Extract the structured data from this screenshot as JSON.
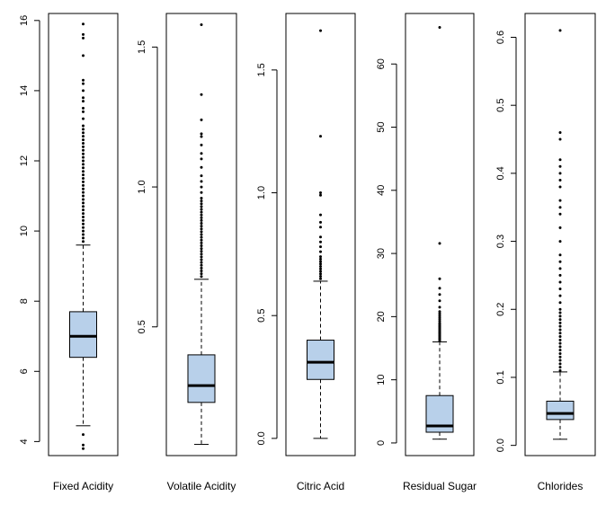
{
  "chart_data": [
    {
      "type": "box",
      "xlabel": "Fixed Acidity",
      "ylim": [
        3.6,
        16.2
      ],
      "yticks": [
        4,
        6,
        8,
        10,
        12,
        14,
        16
      ],
      "box": {
        "whisker_low": 4.45,
        "q1": 6.4,
        "median": 7.0,
        "q3": 7.7,
        "whisker_high": 9.6
      },
      "outliers": [
        3.8,
        3.9,
        4.2,
        9.7,
        9.8,
        9.9,
        10.0,
        10.1,
        10.2,
        10.3,
        10.4,
        10.5,
        10.6,
        10.7,
        10.8,
        10.9,
        11.0,
        11.1,
        11.2,
        11.3,
        11.4,
        11.5,
        11.6,
        11.7,
        11.8,
        11.9,
        12.0,
        12.1,
        12.2,
        12.3,
        12.4,
        12.5,
        12.6,
        12.7,
        12.8,
        12.9,
        13.0,
        13.2,
        13.4,
        13.5,
        13.7,
        13.8,
        14.0,
        14.2,
        14.3,
        15.0,
        15.5,
        15.6,
        15.9
      ]
    },
    {
      "type": "box",
      "xlabel": "Volatile Acidity",
      "ylim": [
        0.04,
        1.62
      ],
      "yticks": [
        0.5,
        1.0,
        1.5
      ],
      "ytick_labels": [
        "0.5",
        "1.0",
        "1.5"
      ],
      "box": {
        "whisker_low": 0.08,
        "q1": 0.23,
        "median": 0.29,
        "q3": 0.4,
        "whisker_high": 0.67
      },
      "outliers": [
        0.68,
        0.69,
        0.7,
        0.71,
        0.72,
        0.73,
        0.74,
        0.75,
        0.76,
        0.77,
        0.78,
        0.79,
        0.8,
        0.81,
        0.82,
        0.83,
        0.84,
        0.85,
        0.86,
        0.87,
        0.88,
        0.89,
        0.9,
        0.91,
        0.92,
        0.93,
        0.94,
        0.95,
        0.96,
        0.98,
        1.0,
        1.02,
        1.04,
        1.07,
        1.1,
        1.12,
        1.15,
        1.18,
        1.19,
        1.24,
        1.33,
        1.58
      ]
    },
    {
      "type": "box",
      "xlabel": "Citric Acid",
      "ylim": [
        -0.07,
        1.73
      ],
      "yticks": [
        0.0,
        0.5,
        1.0,
        1.5
      ],
      "ytick_labels": [
        "0.0",
        "0.5",
        "1.0",
        "1.5"
      ],
      "box": {
        "whisker_low": 0.0,
        "q1": 0.24,
        "median": 0.31,
        "q3": 0.4,
        "whisker_high": 0.64
      },
      "outliers": [
        0.65,
        0.66,
        0.67,
        0.68,
        0.69,
        0.7,
        0.71,
        0.72,
        0.73,
        0.74,
        0.76,
        0.78,
        0.8,
        0.82,
        0.86,
        0.88,
        0.91,
        0.99,
        1.0,
        1.23,
        1.66
      ]
    },
    {
      "type": "box",
      "xlabel": "Residual Sugar",
      "ylim": [
        -2.0,
        68.0
      ],
      "yticks": [
        0,
        10,
        20,
        30,
        40,
        50,
        60
      ],
      "box": {
        "whisker_low": 0.6,
        "q1": 1.7,
        "median": 2.7,
        "q3": 7.5,
        "whisker_high": 16.0
      },
      "outliers": [
        16.2,
        16.4,
        16.6,
        16.8,
        17.0,
        17.2,
        17.4,
        17.6,
        17.8,
        18.0,
        18.2,
        18.4,
        18.6,
        18.8,
        19.0,
        19.3,
        19.6,
        19.9,
        20.2,
        20.5,
        20.8,
        21.5,
        22.5,
        23.5,
        24.5,
        26.0,
        31.6,
        65.8
      ]
    },
    {
      "type": "box",
      "xlabel": "Chlorides",
      "ylim": [
        -0.015,
        0.635
      ],
      "yticks": [
        0.0,
        0.1,
        0.2,
        0.3,
        0.4,
        0.5,
        0.6
      ],
      "ytick_labels": [
        "0.0",
        "0.1",
        "0.2",
        "0.3",
        "0.4",
        "0.5",
        "0.6"
      ],
      "box": {
        "whisker_low": 0.009,
        "q1": 0.038,
        "median": 0.047,
        "q3": 0.065,
        "whisker_high": 0.108
      },
      "outliers": [
        0.11,
        0.115,
        0.12,
        0.125,
        0.13,
        0.135,
        0.14,
        0.145,
        0.15,
        0.155,
        0.16,
        0.165,
        0.17,
        0.175,
        0.18,
        0.185,
        0.19,
        0.195,
        0.2,
        0.21,
        0.22,
        0.23,
        0.24,
        0.25,
        0.26,
        0.27,
        0.28,
        0.3,
        0.32,
        0.34,
        0.35,
        0.36,
        0.38,
        0.39,
        0.4,
        0.41,
        0.42,
        0.45,
        0.46,
        0.61
      ]
    }
  ],
  "style": {
    "box_fill": "#b8d0ea",
    "line_color": "#000000",
    "background": "#ffffff"
  }
}
